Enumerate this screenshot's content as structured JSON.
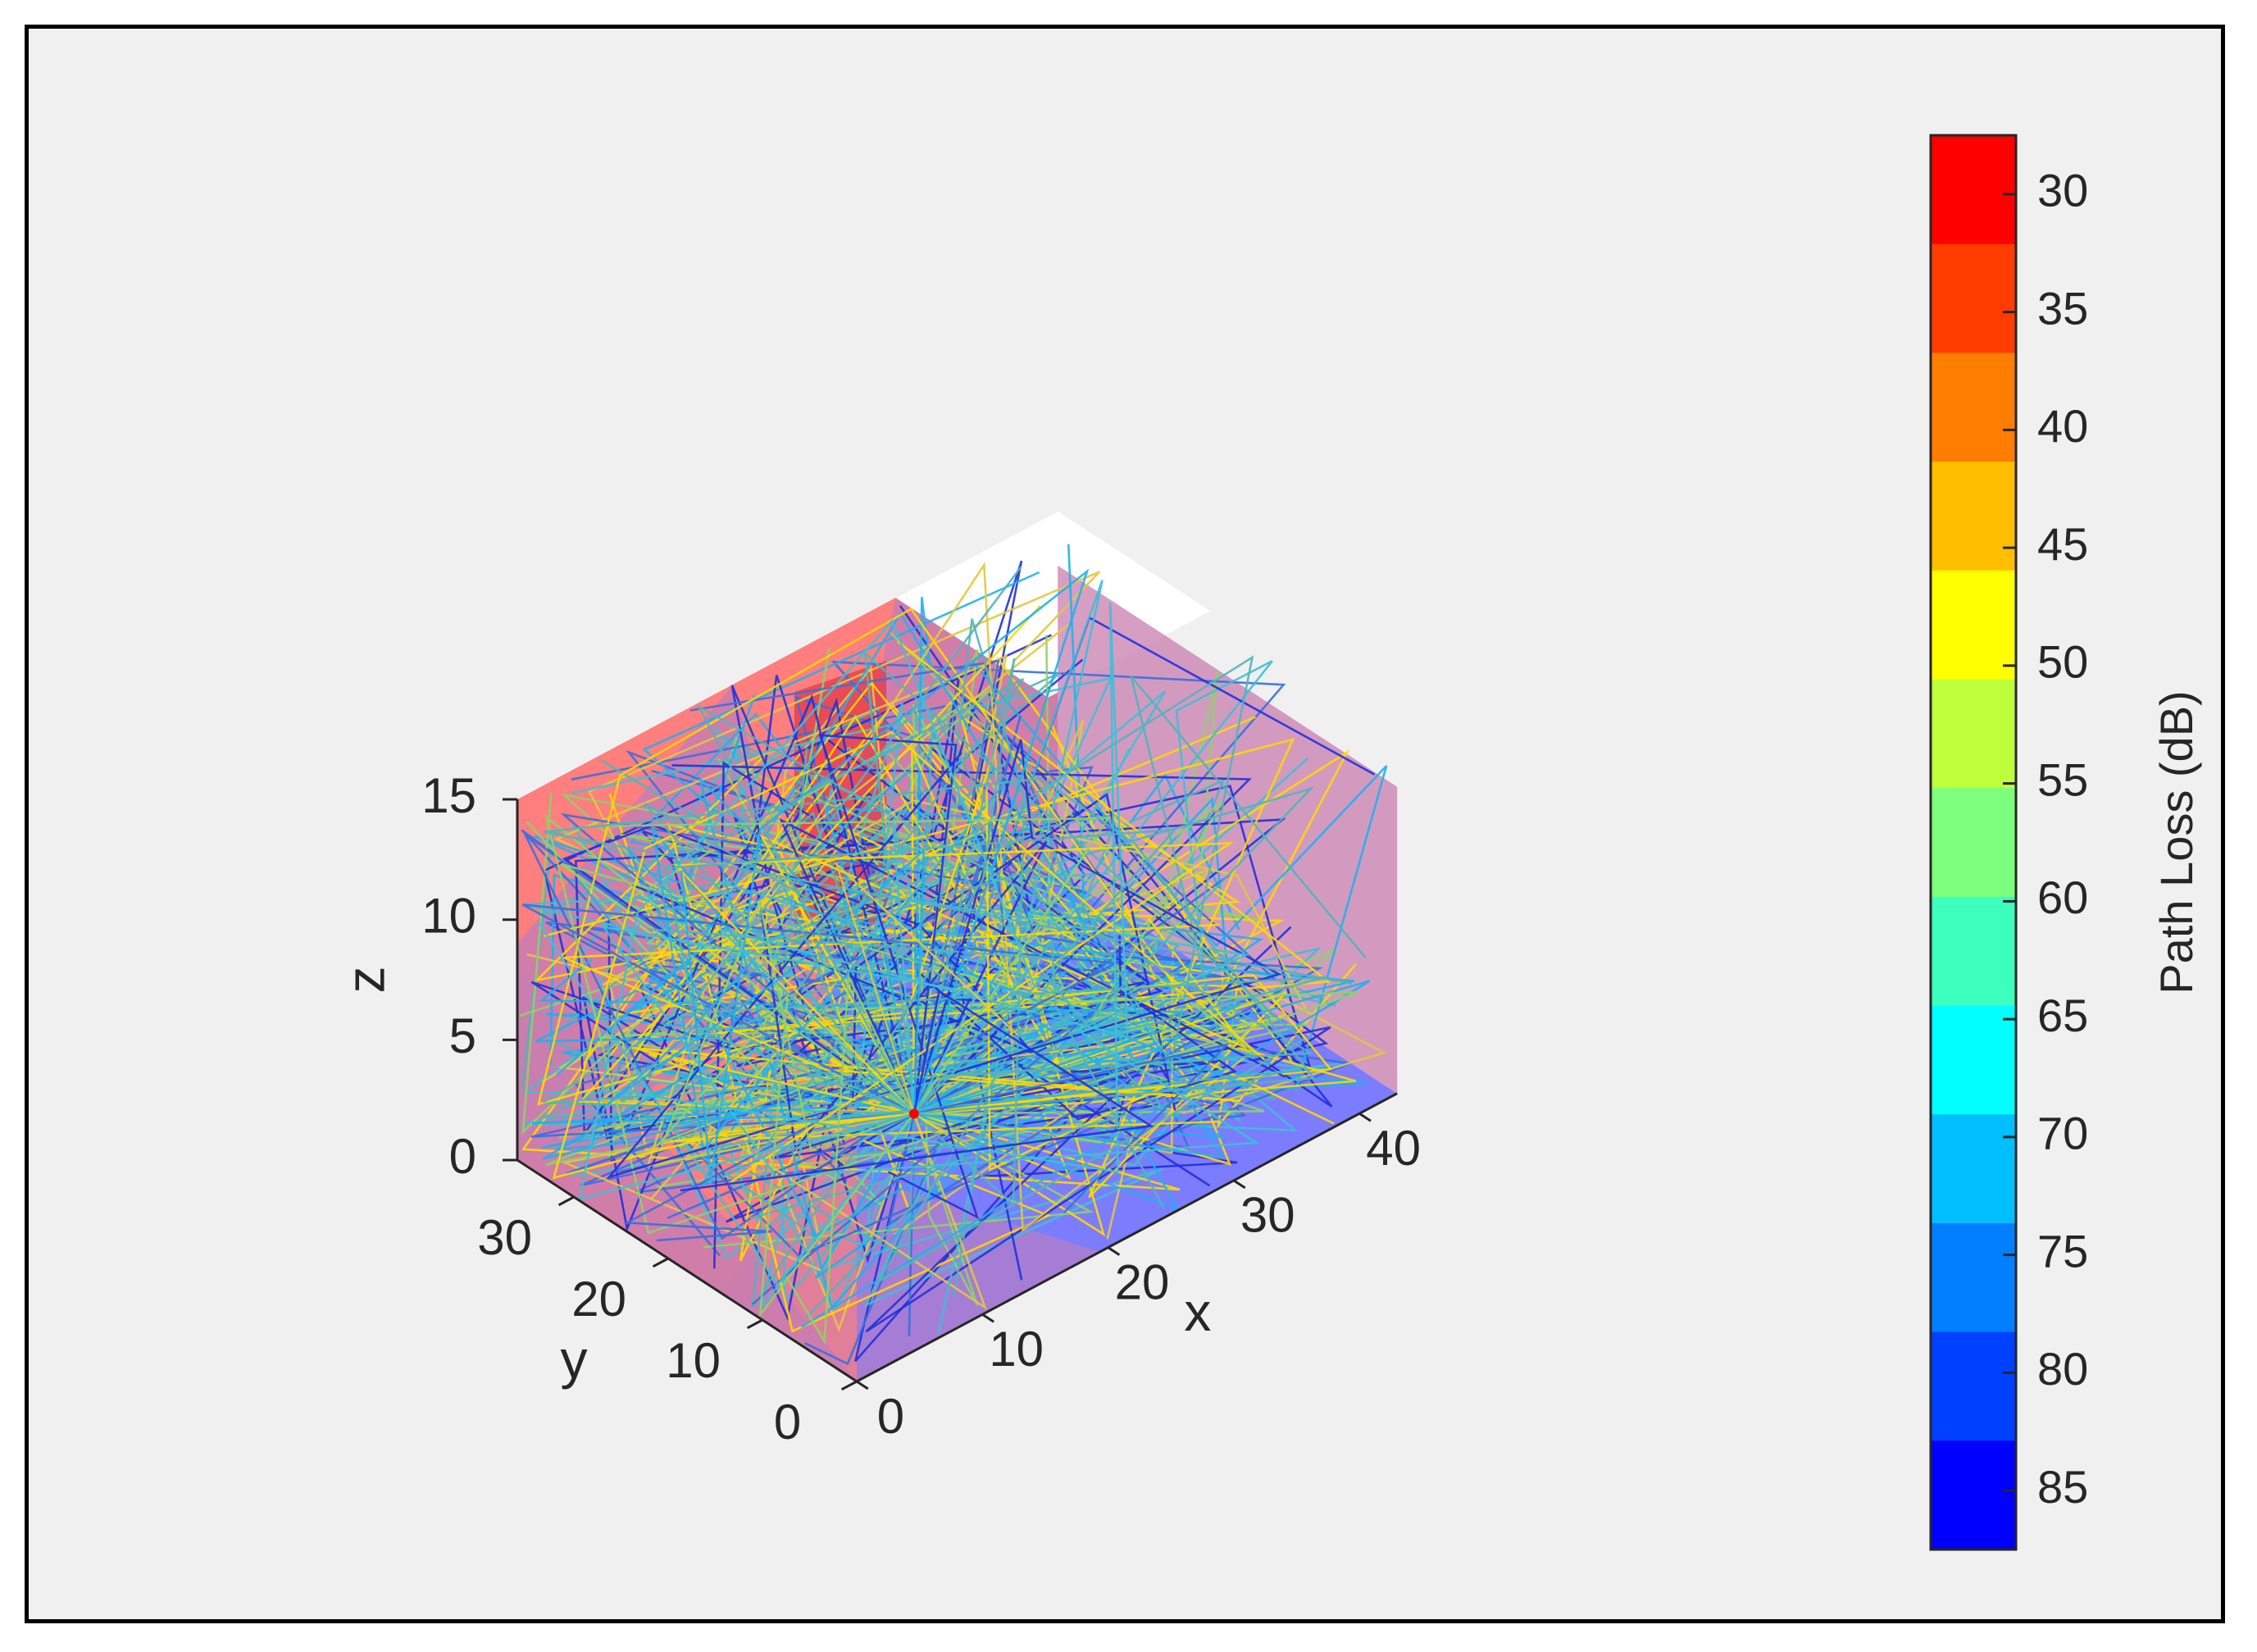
{
  "chart_data": {
    "type": "scatter",
    "subtype": "3d-ray-paths",
    "title": "",
    "axes": {
      "x": {
        "label": "x",
        "ticks": [
          0,
          10,
          20,
          30,
          40
        ],
        "range": [
          0,
          43
        ]
      },
      "y": {
        "label": "y",
        "ticks": [
          0,
          10,
          20,
          30
        ],
        "range": [
          0,
          36
        ]
      },
      "z": {
        "label": "z",
        "ticks": [
          0,
          5,
          10,
          15
        ],
        "range": [
          0,
          15
        ]
      }
    },
    "colorbar": {
      "label": "Path Loss (dB)",
      "ticks": [
        30,
        35,
        40,
        45,
        50,
        55,
        60,
        65,
        70,
        75,
        80,
        85
      ],
      "range": [
        27.5,
        87.5
      ],
      "colors": [
        "#ff0000",
        "#ff3c00",
        "#ff7d00",
        "#ffbe00",
        "#ffff00",
        "#beff3c",
        "#7dff7d",
        "#3cffbe",
        "#00ffff",
        "#00bfff",
        "#0080ff",
        "#0040ff",
        "#0000ff"
      ]
    },
    "grid": false,
    "legend": "none",
    "wall_colors": {
      "floor": "#7c7cff",
      "wall": "#ff7e7e",
      "overlap": "#c97db0",
      "ceiling_gap": "#ffffff",
      "dark_wall": "#e23a4a"
    },
    "ray_colors": [
      "#52b4bb",
      "#3fbfd6",
      "#1fb0f0",
      "#3a6fdf",
      "#2231d9",
      "#8fd06a",
      "#e3c640",
      "#ffd800"
    ],
    "source_marker_color": "#ff0000"
  }
}
